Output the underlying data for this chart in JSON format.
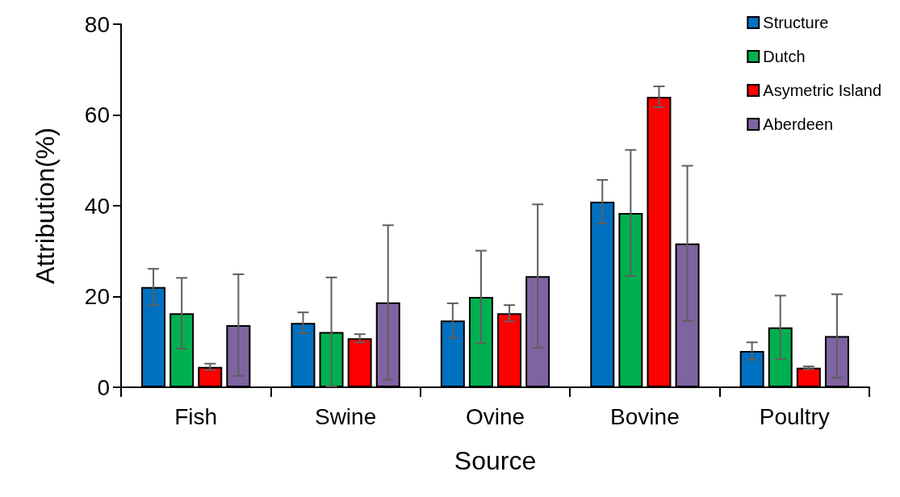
{
  "chart_data": {
    "type": "bar",
    "xlabel": "Source",
    "ylabel": "Attribution(%)",
    "categories": [
      "Fish",
      "Swine",
      "Ovine",
      "Bovine",
      "Poultry"
    ],
    "series": [
      {
        "name": "Structure",
        "color": "#0070c0",
        "values": [
          22.1,
          14.2,
          14.7,
          40.9,
          8.0
        ],
        "errors": [
          4.0,
          2.3,
          3.8,
          4.8,
          1.9
        ]
      },
      {
        "name": "Dutch",
        "color": "#00b050",
        "values": [
          16.3,
          12.2,
          19.9,
          38.4,
          13.2
        ],
        "errors": [
          7.8,
          12.0,
          10.2,
          13.9,
          7.0
        ]
      },
      {
        "name": "Asymetric Island",
        "color": "#ff0000",
        "values": [
          4.5,
          10.8,
          16.3,
          64.0,
          4.3
        ],
        "errors": [
          0.7,
          0.9,
          1.8,
          2.3,
          0.3
        ]
      },
      {
        "name": "Aberdeen",
        "color": "#8064a2",
        "values": [
          13.7,
          18.7,
          24.5,
          31.7,
          11.3
        ],
        "errors": [
          11.2,
          17.0,
          15.8,
          17.1,
          9.2
        ]
      }
    ],
    "ylim": [
      0,
      80
    ],
    "yticks": [
      0,
      20,
      40,
      60,
      80
    ],
    "grid": false,
    "legend": "top right"
  }
}
